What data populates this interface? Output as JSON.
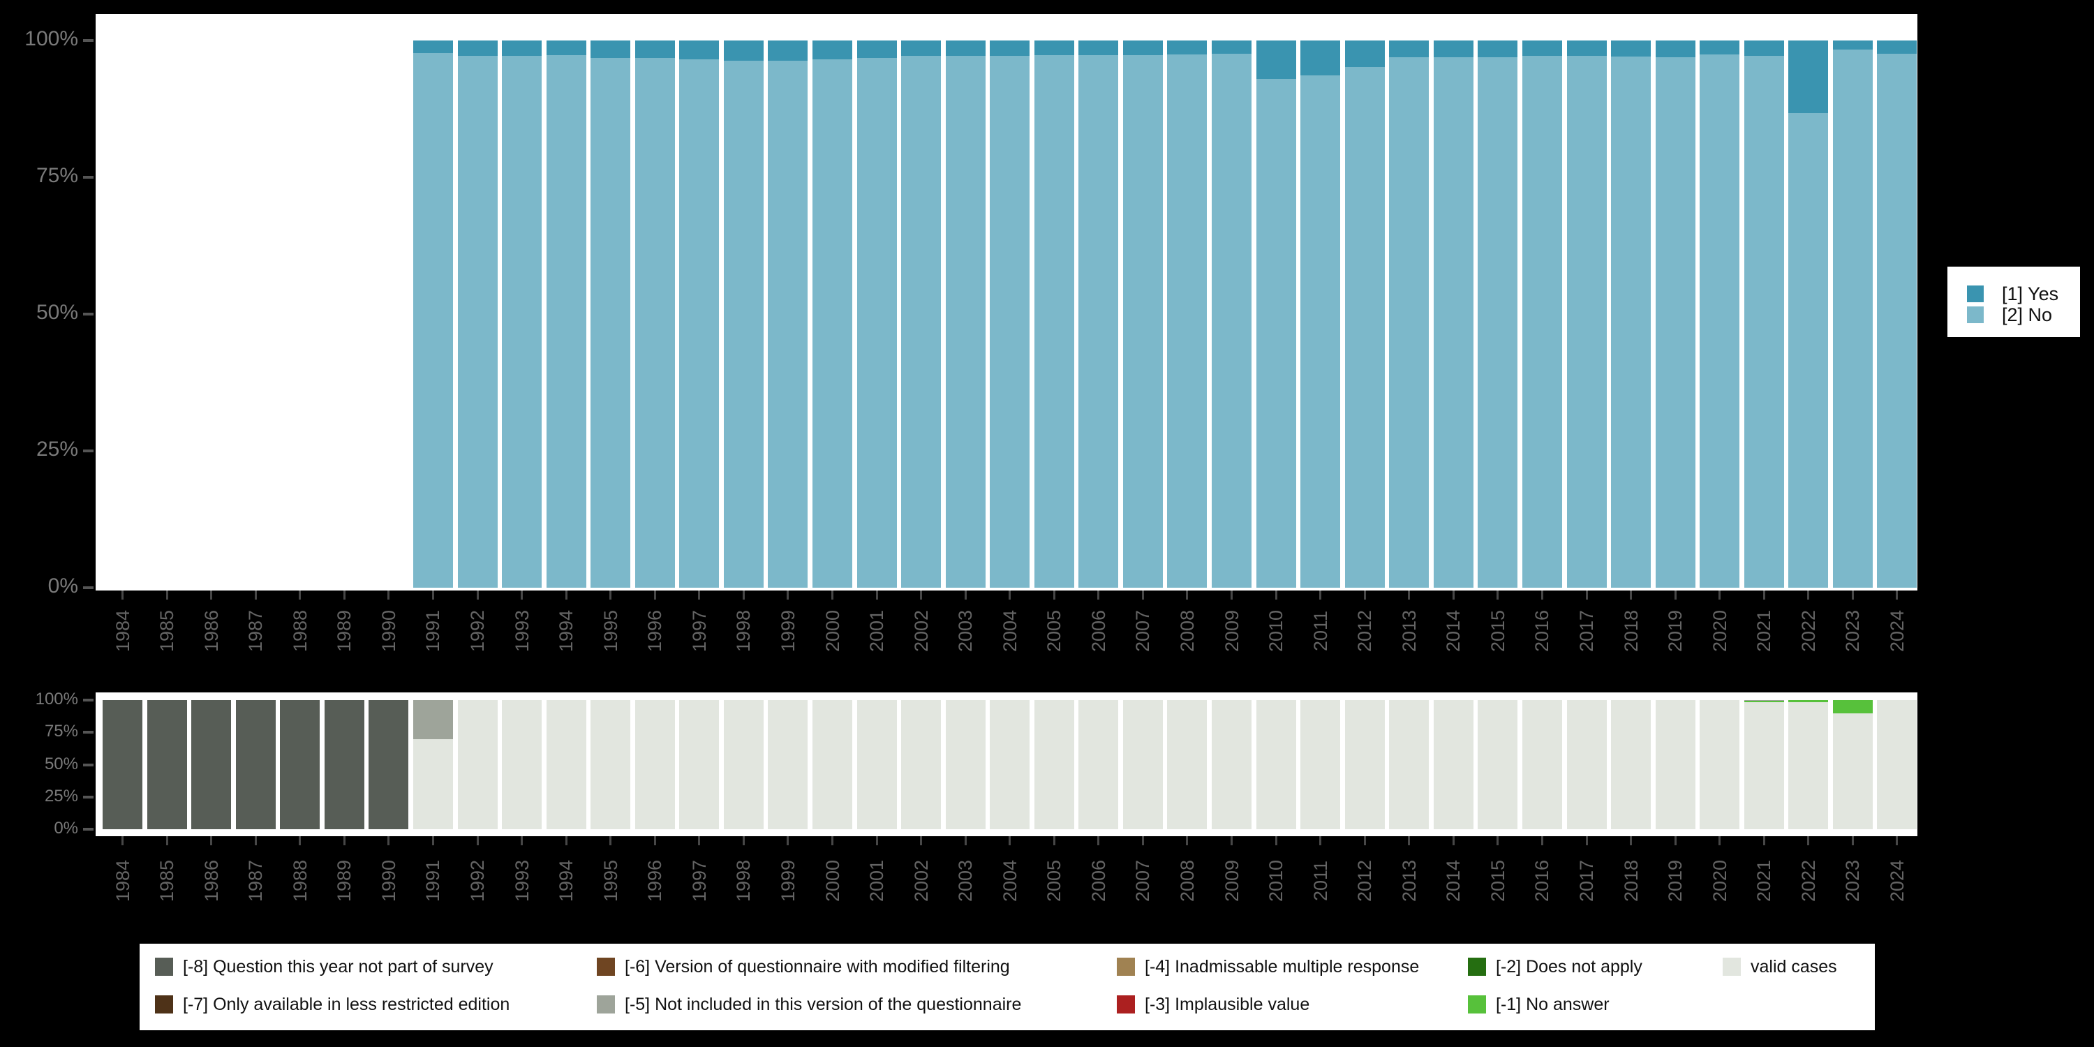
{
  "colors": {
    "page_bg": "#000000",
    "plot_bg": "#ffffff",
    "yes": "#3a94b0",
    "no": "#7cb8ca",
    "m8": "#575d56",
    "m7": "#4e3218",
    "m6": "#6f4522",
    "m5": "#9ea49a",
    "m4": "#a08252",
    "m3": "#ac2020",
    "m2": "#256e11",
    "m1": "#57c13b",
    "valid": "#e2e6df",
    "axis_text": "#7a7a7a",
    "year_text": "#646464",
    "tick": "#474747",
    "dash": "#555555",
    "legend_text": "#111111"
  },
  "chart_data": [
    {
      "id": "variable-presence",
      "type": "bar",
      "stacked": true,
      "title": "",
      "xlabel": "",
      "ylabel": "",
      "ylim": [
        0,
        100
      ],
      "grid": false,
      "legend_position": "right",
      "y_ticks": [
        "100%",
        "75%",
        "50%",
        "25%",
        "0%"
      ],
      "categories": [
        "1984",
        "1985",
        "1986",
        "1987",
        "1988",
        "1989",
        "1990",
        "1991",
        "1992",
        "1993",
        "1994",
        "1995",
        "1996",
        "1997",
        "1998",
        "1999",
        "2000",
        "2001",
        "2002",
        "2003",
        "2004",
        "2005",
        "2006",
        "2007",
        "2008",
        "2009",
        "2010",
        "2011",
        "2012",
        "2013",
        "2014",
        "2015",
        "2016",
        "2017",
        "2018",
        "2019",
        "2020",
        "2021",
        "2022",
        "2023",
        "2024"
      ],
      "series": [
        {
          "name": "[1] Yes",
          "color_key": "yes",
          "values": [
            null,
            null,
            null,
            null,
            null,
            null,
            null,
            2.3,
            2.8,
            2.8,
            2.7,
            3.2,
            3.2,
            3.4,
            3.7,
            3.7,
            3.4,
            3.2,
            2.8,
            2.8,
            2.8,
            2.7,
            2.7,
            2.7,
            2.6,
            2.4,
            7.0,
            6.4,
            4.8,
            3.1,
            3.1,
            3.0,
            2.8,
            2.8,
            2.9,
            3.0,
            2.5,
            2.8,
            13.3,
            1.7,
            2.4
          ]
        },
        {
          "name": "[2] No",
          "color_key": "no",
          "values": [
            null,
            null,
            null,
            null,
            null,
            null,
            null,
            97.7,
            97.2,
            97.2,
            97.3,
            96.8,
            96.8,
            96.6,
            96.3,
            96.3,
            96.6,
            96.8,
            97.2,
            97.2,
            97.2,
            97.3,
            97.3,
            97.3,
            97.4,
            97.6,
            93.0,
            93.6,
            95.2,
            96.9,
            96.9,
            97.0,
            97.2,
            97.2,
            97.1,
            97.0,
            97.5,
            97.2,
            86.7,
            98.3,
            97.6
          ]
        }
      ]
    },
    {
      "id": "missing-values",
      "type": "bar",
      "stacked": true,
      "title": "",
      "xlabel": "",
      "ylabel": "",
      "ylim": [
        0,
        100
      ],
      "grid": false,
      "legend_position": "bottom",
      "y_ticks": [
        "100%",
        "75%",
        "50%",
        "25%",
        "0%"
      ],
      "categories": [
        "1984",
        "1985",
        "1986",
        "1987",
        "1988",
        "1989",
        "1990",
        "1991",
        "1992",
        "1993",
        "1994",
        "1995",
        "1996",
        "1997",
        "1998",
        "1999",
        "2000",
        "2001",
        "2002",
        "2003",
        "2004",
        "2005",
        "2006",
        "2007",
        "2008",
        "2009",
        "2010",
        "2011",
        "2012",
        "2013",
        "2014",
        "2015",
        "2016",
        "2017",
        "2018",
        "2019",
        "2020",
        "2021",
        "2022",
        "2023",
        "2024"
      ],
      "series": [
        {
          "name": "[-8] Question this year not part of survey",
          "color_key": "m8",
          "values": [
            100,
            100,
            100,
            100,
            100,
            100,
            100,
            0,
            0,
            0,
            0,
            0,
            0,
            0,
            0,
            0,
            0,
            0,
            0,
            0,
            0,
            0,
            0,
            0,
            0,
            0,
            0,
            0,
            0,
            0,
            0,
            0,
            0,
            0,
            0,
            0,
            0,
            0,
            0,
            0,
            0
          ]
        },
        {
          "name": "[-5] Not included in this version of the questionnaire",
          "color_key": "m5",
          "values": [
            0,
            0,
            0,
            0,
            0,
            0,
            0,
            30,
            0,
            0,
            0,
            0,
            0,
            0,
            0,
            0,
            0,
            0,
            0,
            0,
            0,
            0,
            0,
            0,
            0,
            0,
            0,
            0,
            0,
            0,
            0,
            0,
            0,
            0,
            0,
            0,
            0,
            0.6,
            0,
            0,
            0
          ]
        },
        {
          "name": "[-1] No answer",
          "color_key": "m1",
          "values": [
            0,
            0,
            0,
            0,
            0,
            0,
            0,
            0,
            0,
            0,
            0,
            0,
            0,
            0,
            0,
            0,
            0,
            0,
            0,
            0,
            0,
            0,
            0,
            0,
            0,
            0,
            0,
            0,
            0,
            0,
            0,
            0,
            0,
            0,
            0,
            0,
            0,
            1.0,
            1.5,
            10.5,
            0
          ]
        },
        {
          "name": "valid cases",
          "color_key": "valid",
          "values": [
            0,
            0,
            0,
            0,
            0,
            0,
            0,
            70,
            100,
            100,
            100,
            100,
            100,
            100,
            100,
            100,
            100,
            100,
            100,
            100,
            100,
            100,
            100,
            100,
            100,
            100,
            100,
            100,
            100,
            100,
            100,
            100,
            100,
            100,
            100,
            100,
            100,
            98.4,
            98.5,
            89.5,
            100
          ]
        }
      ]
    }
  ],
  "legend_right": {
    "items": [
      {
        "label": "[1] Yes",
        "color_key": "yes"
      },
      {
        "label": "[2] No",
        "color_key": "no"
      }
    ]
  },
  "legend_bottom": {
    "columns": [
      [
        {
          "label": "[-8] Question this year not part of survey",
          "color_key": "m8"
        },
        {
          "label": "[-7] Only available in less restricted edition",
          "color_key": "m7"
        }
      ],
      [
        {
          "label": "[-6] Version of questionnaire with modified filtering",
          "color_key": "m6"
        },
        {
          "label": "[-5] Not included in this version of the questionnaire",
          "color_key": "m5"
        }
      ],
      [
        {
          "label": "[-4] Inadmissable multiple response",
          "color_key": "m4"
        },
        {
          "label": "[-3] Implausible value",
          "color_key": "m3"
        }
      ],
      [
        {
          "label": "[-2] Does not apply",
          "color_key": "m2"
        },
        {
          "label": "[-1] No answer",
          "color_key": "m1"
        }
      ],
      [
        {
          "label": "valid cases",
          "color_key": "valid"
        }
      ]
    ]
  }
}
